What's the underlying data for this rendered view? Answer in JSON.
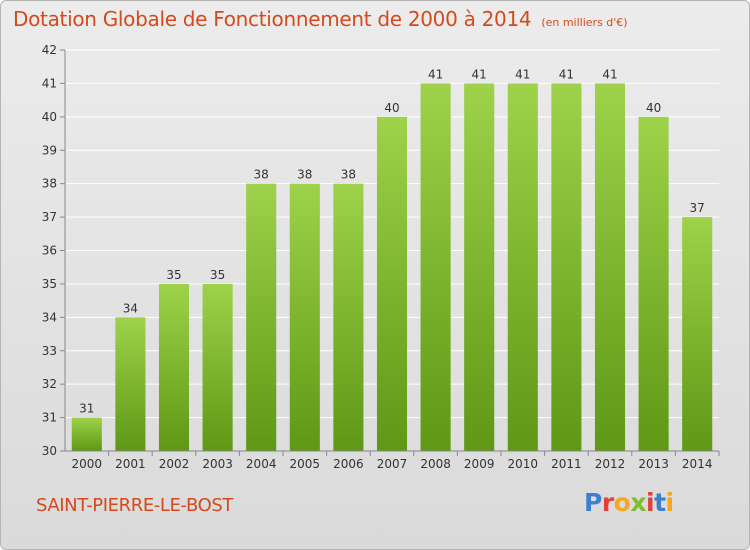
{
  "header": {
    "title": "Dotation Globale de Fonctionnement de 2000 à 2014",
    "unit_note": "(en milliers d'€)"
  },
  "footer": {
    "town": "SAINT-PIERRE-LE-BOST",
    "brand": "Proxiti",
    "brand_colors": [
      "#3a7fd0",
      "#e2403a",
      "#f5a623",
      "#7fbf2a",
      "#e2403a",
      "#3a7fd0",
      "#f5a623"
    ]
  },
  "colors": {
    "accent": "#d44a1c",
    "bar_top": "#9ed24a",
    "bar_bottom": "#5e9815",
    "grid": "#ffffff",
    "axis_text": "#333333"
  },
  "chart_data": {
    "type": "bar",
    "title": "Dotation Globale de Fonctionnement de 2000 à 2014",
    "subtitle": "(en milliers d'€)",
    "xlabel": "",
    "ylabel": "",
    "categories": [
      "2000",
      "2001",
      "2002",
      "2003",
      "2004",
      "2005",
      "2006",
      "2007",
      "2008",
      "2009",
      "2010",
      "2011",
      "2012",
      "2013",
      "2014"
    ],
    "values": [
      31,
      34,
      35,
      35,
      38,
      38,
      38,
      40,
      41,
      41,
      41,
      41,
      41,
      40,
      37
    ],
    "data_labels": [
      "31",
      "34",
      "35",
      "35",
      "38",
      "38",
      "38",
      "40",
      "41",
      "41",
      "41",
      "41",
      "41",
      "40",
      "37"
    ],
    "ylim": [
      30,
      42
    ],
    "yticks": [
      30,
      31,
      32,
      33,
      34,
      35,
      36,
      37,
      38,
      39,
      40,
      41,
      42
    ],
    "grid": true,
    "legend": "none"
  }
}
